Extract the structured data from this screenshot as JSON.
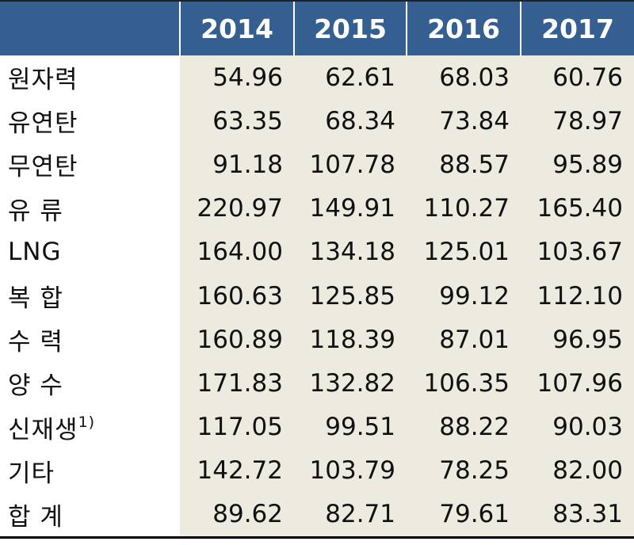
{
  "columns": [
    "2014",
    "2015",
    "2016",
    "2017"
  ],
  "rows": [
    {
      "label": "원자력",
      "note": "",
      "values": [
        "54.96",
        "62.61",
        "68.03",
        "60.76"
      ]
    },
    {
      "label": "유연탄",
      "note": "",
      "values": [
        "63.35",
        "68.34",
        "73.84",
        "78.97"
      ]
    },
    {
      "label": "무연탄",
      "note": "",
      "values": [
        "91.18",
        "107.78",
        "88.57",
        "95.89"
      ]
    },
    {
      "label": "유 류",
      "note": "",
      "values": [
        "220.97",
        "149.91",
        "110.27",
        "165.40"
      ]
    },
    {
      "label": "LNG",
      "note": "",
      "values": [
        "164.00",
        "134.18",
        "125.01",
        "103.67"
      ]
    },
    {
      "label": "복 합",
      "note": "",
      "values": [
        "160.63",
        "125.85",
        "99.12",
        "112.10"
      ]
    },
    {
      "label": "수 력",
      "note": "",
      "values": [
        "160.89",
        "118.39",
        "87.01",
        "96.95"
      ]
    },
    {
      "label": "양 수",
      "note": "",
      "values": [
        "171.83",
        "132.82",
        "106.35",
        "107.96"
      ]
    },
    {
      "label": "신재생",
      "note": "1)",
      "values": [
        "117.05",
        "99.51",
        "88.22",
        "90.03"
      ]
    },
    {
      "label": "기타",
      "note": "",
      "values": [
        "142.72",
        "103.79",
        "78.25",
        "82.00"
      ]
    },
    {
      "label": "합 계",
      "note": "",
      "values": [
        "89.62",
        "82.71",
        "79.61",
        "83.31"
      ]
    }
  ],
  "colors": {
    "header_bg": "#365f91",
    "header_text": "#ffffff",
    "value_bg": "#edebe0"
  }
}
